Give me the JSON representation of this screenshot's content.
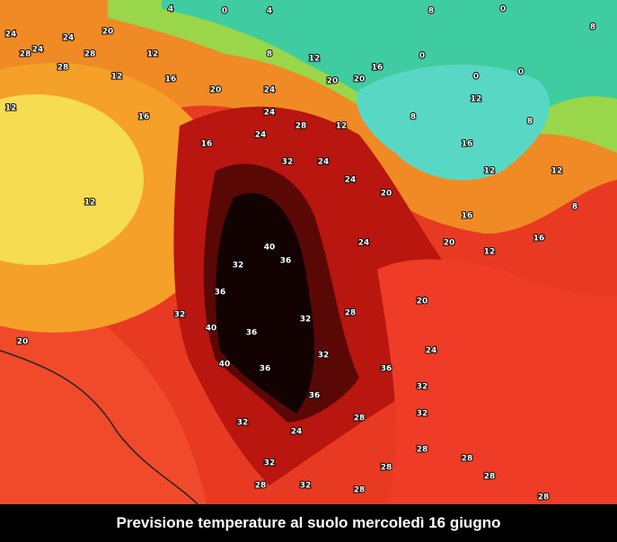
{
  "map": {
    "labels": [
      "24",
      "24",
      "28",
      "24",
      "20",
      "4",
      "0",
      "4",
      "8",
      "0",
      "8",
      "28",
      "28",
      "12",
      "8",
      "12",
      "16",
      "0",
      "0",
      "0",
      "12",
      "16",
      "20",
      "24",
      "20",
      "20",
      "12",
      "16",
      "24",
      "28",
      "12",
      "8",
      "12",
      "8",
      "12",
      "16",
      "24",
      "32",
      "24",
      "24",
      "20",
      "16",
      "12",
      "12",
      "8",
      "16",
      "16",
      "40",
      "32",
      "36",
      "24",
      "20",
      "12",
      "20",
      "36",
      "32",
      "32",
      "28",
      "20",
      "40",
      "36",
      "32",
      "36",
      "24",
      "40",
      "36",
      "36",
      "32",
      "28",
      "32",
      "24",
      "32",
      "32",
      "32",
      "28",
      "28",
      "28",
      "28",
      "28",
      "28",
      "28"
    ]
  },
  "caption": "Previsione temperature al suolo mercoledì 16 giugno"
}
